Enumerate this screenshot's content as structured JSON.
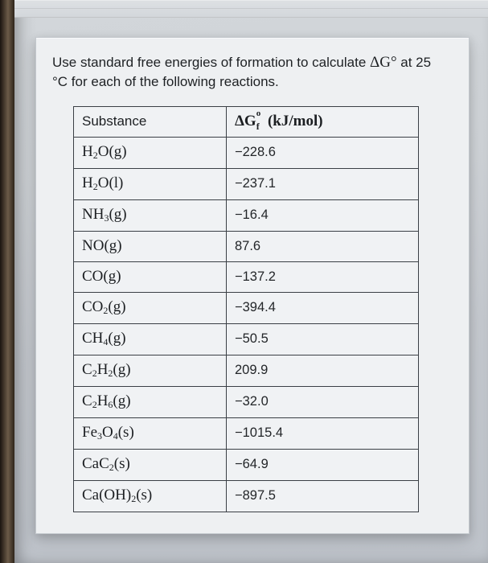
{
  "prompt": {
    "line1_pre": "Use standard free energies of formation to calculate ",
    "deltaG": "ΔG°",
    "line1_post": " at 25",
    "line2": "°C for each of the following reactions."
  },
  "table": {
    "header_substance": "Substance",
    "header_dg_html": "ΔG<span style=\"position:relative\"><sub style=\"position:absolute;left:0;bottom:-4px\">f</sub><sup style=\"position:absolute;left:0;top:-5px\">o</sup></span>&nbsp;&nbsp; <span class=\"units\">(kJ/mol)</span>",
    "rows": [
      {
        "formula_html": "H<sub>2</sub>O(g)",
        "value": "−228.6"
      },
      {
        "formula_html": "H<sub>2</sub>O(l)",
        "value": "−237.1"
      },
      {
        "formula_html": "NH<sub>3</sub>(g)",
        "value": "−16.4"
      },
      {
        "formula_html": "NO(g)",
        "value": "87.6"
      },
      {
        "formula_html": "CO(g)",
        "value": "−137.2"
      },
      {
        "formula_html": "CO<sub>2</sub>(g)",
        "value": "−394.4"
      },
      {
        "formula_html": "CH<sub>4</sub>(g)",
        "value": "−50.5"
      },
      {
        "formula_html": "C<sub>2</sub>H<sub>2</sub>(g)",
        "value": "209.9"
      },
      {
        "formula_html": "C<sub>2</sub>H<sub>6</sub>(g)",
        "value": "−32.0"
      },
      {
        "formula_html": "Fe<sub>3</sub>O<sub>4</sub>(s)",
        "value": "−1015.4"
      },
      {
        "formula_html": "CaC<sub>2</sub>(s)",
        "value": "−64.9"
      },
      {
        "formula_html": "Ca(OH)<sub>2</sub>(s)",
        "value": "−897.5"
      }
    ]
  },
  "style": {
    "card_bg": "#eef0f2",
    "border_color": "#3a3f45",
    "text_color": "#1e2124",
    "page_bg_gradient": [
      "#d2d6da",
      "#bfc4cb"
    ]
  }
}
